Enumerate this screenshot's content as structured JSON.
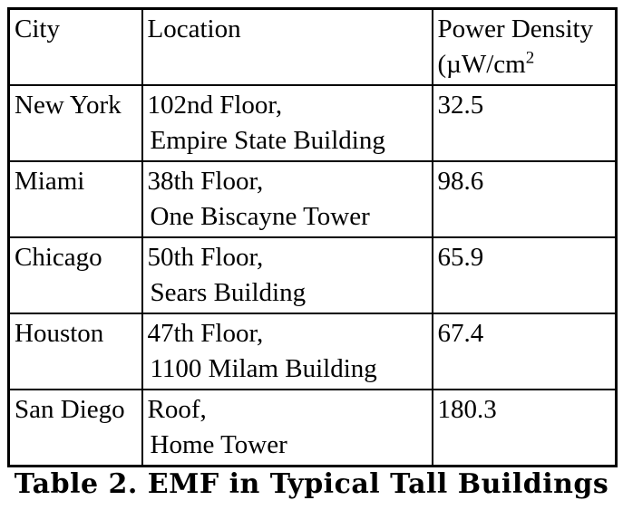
{
  "table": {
    "header": {
      "city": "City",
      "location": "Location",
      "power_line1": "Power Density",
      "power_line2_prefix": "(µW/cm",
      "power_line2_sup": "2"
    },
    "rows": [
      {
        "city": "New York",
        "location_line1": "102nd Floor,",
        "location_line2": "Empire State Building",
        "power_density": "32.5"
      },
      {
        "city": "Miami",
        "location_line1": "38th Floor,",
        "location_line2": "One Biscayne Tower",
        "power_density": "98.6"
      },
      {
        "city": "Chicago",
        "location_line1": "50th Floor,",
        "location_line2": "Sears Building",
        "power_density": "65.9"
      },
      {
        "city": "Houston",
        "location_line1": "47th Floor,",
        "location_line2": "1100 Milam Building",
        "power_density": "67.4"
      },
      {
        "city": "San Diego",
        "location_line1": "Roof,",
        "location_line2": "Home Tower",
        "power_density": "180.3"
      }
    ]
  },
  "caption": "Table 2. EMF in Typical Tall Buildings"
}
